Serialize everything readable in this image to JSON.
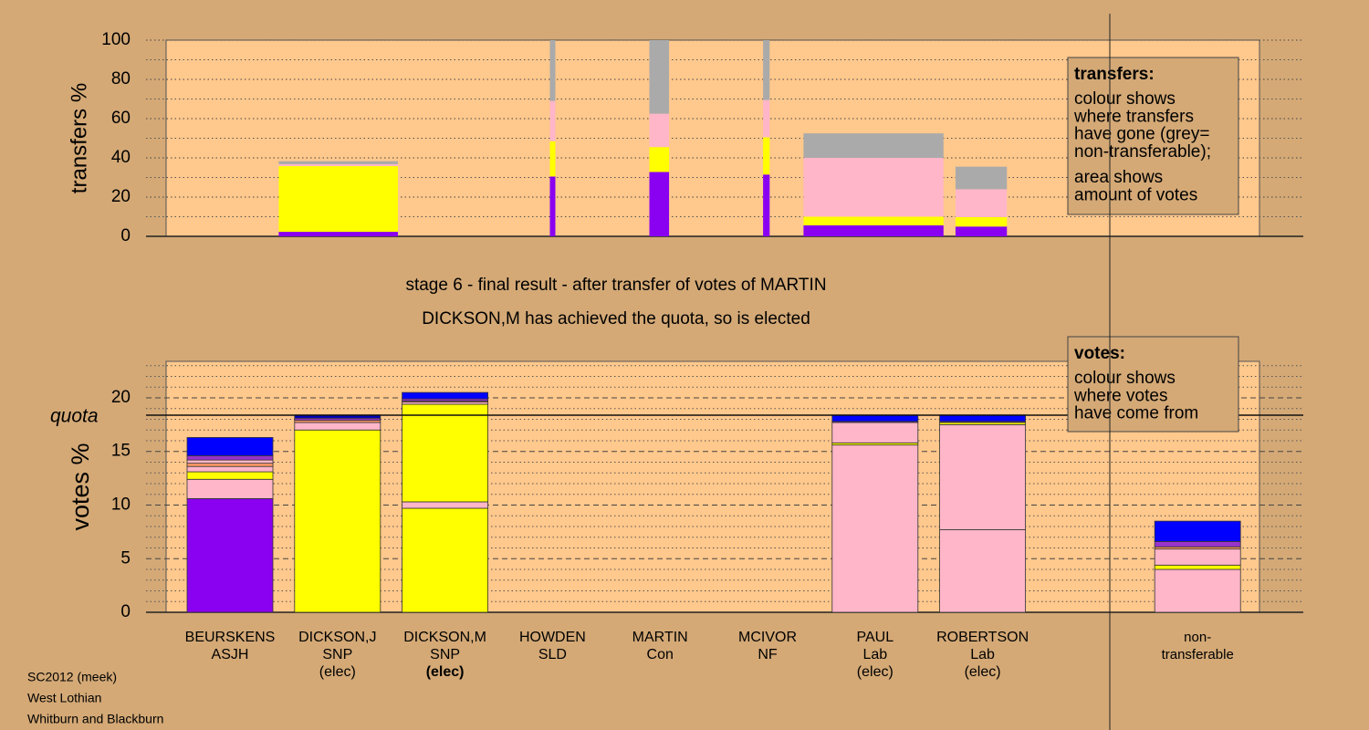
{
  "chart_data": [
    {
      "type": "variable-width-bar",
      "ylabel": "transfers %",
      "ylim": [
        0,
        100
      ],
      "yticks": [
        0,
        20,
        40,
        60,
        80,
        100
      ],
      "minor_yticks": [
        10,
        30,
        50,
        70,
        90
      ],
      "grid": {
        "major": "dotted",
        "minor": "dotted"
      },
      "xlim": [
        0,
        100
      ],
      "x": [
        10.3,
        35.1,
        44.2,
        54.6,
        58.3,
        72.2
      ],
      "widths": [
        10.9,
        0.5,
        1.8,
        0.6,
        12.8,
        4.7
      ],
      "series": [
        {
          "color": "#8a00f0",
          "values": [
            2.3,
            30.5,
            32.8,
            31.5,
            5.6,
            5
          ]
        },
        {
          "color": "#ffff00",
          "values": [
            33.5,
            18,
            12.7,
            19,
            4.4,
            4.8
          ]
        },
        {
          "color": "#ffb6c8",
          "values": [
            1,
            20.5,
            17,
            19,
            30,
            14.2
          ]
        },
        {
          "color": "#aaaaaa",
          "values": [
            1.5,
            31,
            37.5,
            30.5,
            12.5,
            11.5
          ]
        }
      ],
      "legend": {
        "title": "transfers:",
        "paragraphs": [
          [
            "colour shows",
            "where transfers",
            "have gone (grey=",
            "non-transferable);"
          ],
          [
            "area shows",
            "amount of votes"
          ]
        ]
      }
    },
    {
      "type": "stacked-bar",
      "title": "stage 6 - final result - after transfer of votes of MARTIN",
      "subtitle": "DICKSON,M has achieved the quota, so is elected",
      "ylabel": "votes %",
      "ylim": [
        0,
        23.4
      ],
      "yticks": [
        0,
        5,
        10,
        15,
        20
      ],
      "minor_yticks": [
        1,
        2,
        3,
        4,
        6,
        7,
        8,
        9,
        11,
        12,
        13,
        14,
        16,
        17,
        18,
        19,
        21,
        22,
        23
      ],
      "grid": {
        "major": "dashed",
        "minor": "dotted"
      },
      "quota": 18.38,
      "quota_label": "quota",
      "categories": [
        [
          "BEURSKENS",
          "ASJH"
        ],
        [
          "DICKSON,J",
          "SNP",
          "(elec)"
        ],
        [
          "DICKSON,M",
          "SNP",
          "(elec)"
        ],
        [
          "HOWDEN",
          "SLD"
        ],
        [
          "MARTIN",
          "Con"
        ],
        [
          "MCIVOR",
          "NF"
        ],
        [
          "PAUL",
          "Lab",
          "(elec)"
        ],
        [
          "ROBERTSON",
          "Lab",
          "(elec)"
        ],
        null,
        [
          "non-",
          "transferable"
        ]
      ],
      "highlighted_category": 2,
      "stacks": [
        [
          {
            "color": "#8a00f0",
            "value": 10.6
          },
          {
            "color": "#ffb6c8",
            "value": 1.8
          },
          {
            "color": "#ffff00",
            "value": 0.7
          },
          {
            "color": "#ffb6c8",
            "value": 0.5
          },
          {
            "color": "#ff9966",
            "value": 0.3
          },
          {
            "color": "#ffb6c8",
            "value": 0.3
          },
          {
            "color": "#9933cc",
            "value": 0.4
          },
          {
            "color": "#0000ff",
            "value": 1.7
          }
        ],
        [
          {
            "color": "#ffff00",
            "value": 17
          },
          {
            "color": "#ffb6c8",
            "value": 0.7
          },
          {
            "color": "#ff9966",
            "value": 0.2
          },
          {
            "color": "#9933cc",
            "value": 0.2
          },
          {
            "color": "#0000c0",
            "value": 0.3
          }
        ],
        [
          {
            "color": "#ffff00",
            "value": 9.7
          },
          {
            "color": "#ffb6c8",
            "value": 0.6
          },
          {
            "color": "#ffff00",
            "value": 9.1
          },
          {
            "color": "#ffb6c8",
            "value": 0.2
          },
          {
            "color": "#ff9966",
            "value": 0.1
          },
          {
            "color": "#9933cc",
            "value": 0.2
          },
          {
            "color": "#0000ff",
            "value": 0.6
          }
        ],
        [],
        [],
        [],
        [
          {
            "color": "#ffb6c8",
            "value": 15.6
          },
          {
            "color": "#ffff00",
            "value": 0.2
          },
          {
            "color": "#ffb6c8",
            "value": 1.9
          },
          {
            "color": "#9933cc",
            "value": 0.1
          },
          {
            "color": "#0000ff",
            "value": 0.6
          }
        ],
        [
          {
            "color": "#ffb6c8",
            "value": 7.7
          },
          {
            "color": "#ffb6c8",
            "value": 9.8
          },
          {
            "color": "#ffff00",
            "value": 0.2
          },
          {
            "color": "#9933cc",
            "value": 0.1
          },
          {
            "color": "#0000ff",
            "value": 0.6
          }
        ],
        [],
        [
          {
            "color": "#ffb6c8",
            "value": 4
          },
          {
            "color": "#ffff00",
            "value": 0.4
          },
          {
            "color": "#ffb6c8",
            "value": 1.5
          },
          {
            "color": "#ff9966",
            "value": 0.2
          },
          {
            "color": "#9933cc",
            "value": 0.5
          },
          {
            "color": "#0000ff",
            "value": 1.9
          }
        ]
      ],
      "legend": {
        "title": "votes:",
        "paragraphs": [
          [
            "colour shows",
            "where votes",
            "have come from"
          ]
        ]
      }
    }
  ],
  "footer": [
    "SC2012 (meek)",
    "West Lothian",
    "Whitburn and Blackburn"
  ]
}
